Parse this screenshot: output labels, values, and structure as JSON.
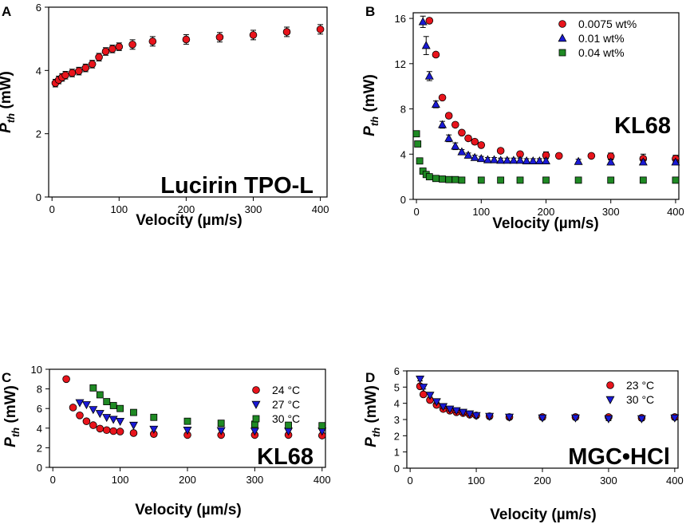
{
  "chart_data": [
    {
      "panel": "A",
      "type": "scatter",
      "annotation": "Lucirin TPO-L",
      "xlabel": "Velocity (µm/s)",
      "ylabel": "Pth (mW)",
      "ylabel_main": "P",
      "ylabel_sub": "th",
      "ylabel_unit": " (mW)",
      "xlim": [
        -5,
        410
      ],
      "ylim": [
        0,
        6
      ],
      "xticks": [
        0,
        100,
        200,
        300,
        400
      ],
      "yticks": [
        0,
        2,
        4,
        6
      ],
      "legend": "none",
      "series": [
        {
          "name": "Lucirin TPO-L",
          "color": "#e8141c",
          "marker": "circle",
          "x": [
            5,
            10,
            15,
            20,
            30,
            40,
            50,
            60,
            70,
            80,
            90,
            100,
            120,
            150,
            200,
            250,
            300,
            350,
            400
          ],
          "y": [
            3.6,
            3.7,
            3.78,
            3.85,
            3.92,
            3.98,
            4.08,
            4.2,
            4.42,
            4.6,
            4.68,
            4.75,
            4.82,
            4.92,
            4.98,
            5.05,
            5.12,
            5.22,
            5.3
          ],
          "err": [
            0.12,
            0.12,
            0.12,
            0.12,
            0.12,
            0.12,
            0.12,
            0.12,
            0.12,
            0.12,
            0.12,
            0.12,
            0.15,
            0.15,
            0.15,
            0.15,
            0.15,
            0.15,
            0.15
          ]
        }
      ]
    },
    {
      "panel": "B",
      "type": "scatter",
      "annotation": "KL68",
      "xlabel": "Velocity (µm/s)",
      "ylabel": "Pth (mW)",
      "ylabel_main": "P",
      "ylabel_sub": "th",
      "ylabel_unit": " (mW)",
      "xlim": [
        -5,
        405
      ],
      "ylim": [
        0,
        16.5
      ],
      "xticks": [
        0,
        100,
        200,
        300,
        400
      ],
      "yticks": [
        0,
        4,
        8,
        12,
        16
      ],
      "legend": "top-right",
      "series": [
        {
          "name": "0.0075 wt%",
          "color": "#e8141c",
          "marker": "circle",
          "x": [
            20,
            30,
            40,
            50,
            60,
            70,
            80,
            90,
            100,
            130,
            160,
            200,
            220,
            270,
            300,
            350,
            400
          ],
          "y": [
            15.8,
            12.8,
            9.0,
            7.4,
            6.6,
            5.9,
            5.4,
            5.1,
            4.8,
            4.3,
            4.0,
            3.9,
            3.85,
            3.85,
            3.8,
            3.6,
            3.6
          ],
          "err": [
            0.2,
            0.2,
            0.2,
            0.2,
            0.2,
            0.2,
            0.2,
            0.2,
            0.2,
            0.2,
            0.2,
            0.3,
            0.2,
            0.2,
            0.3,
            0.4,
            0.3
          ]
        },
        {
          "name": "0.01 wt%",
          "color": "#1a1ad6",
          "marker": "triangle-up",
          "x": [
            10,
            15,
            20,
            30,
            40,
            50,
            60,
            70,
            80,
            90,
            100,
            110,
            120,
            130,
            140,
            150,
            160,
            170,
            180,
            190,
            200,
            250,
            300,
            350,
            400
          ],
          "y": [
            15.7,
            13.6,
            10.9,
            8.4,
            6.6,
            5.4,
            4.7,
            4.2,
            3.9,
            3.7,
            3.6,
            3.5,
            3.5,
            3.45,
            3.45,
            3.45,
            3.45,
            3.4,
            3.4,
            3.4,
            3.4,
            3.35,
            3.3,
            3.3,
            3.3
          ],
          "err": [
            0.5,
            0.8,
            0.4,
            0.3,
            0.3,
            0.3,
            0.3,
            0.2,
            0.2,
            0.2,
            0.2,
            0.2,
            0.2,
            0.2,
            0.2,
            0.2,
            0.2,
            0.2,
            0.2,
            0.2,
            0.2,
            0.2,
            0.25,
            0.2,
            0.2
          ]
        },
        {
          "name": "0.04 wt%",
          "color": "#1f8a24",
          "marker": "square",
          "x": [
            0,
            2,
            5,
            10,
            15,
            20,
            30,
            40,
            50,
            60,
            70,
            100,
            130,
            160,
            200,
            250,
            300,
            350,
            400
          ],
          "y": [
            5.8,
            4.9,
            3.4,
            2.5,
            2.2,
            2.0,
            1.85,
            1.8,
            1.75,
            1.75,
            1.7,
            1.7,
            1.7,
            1.7,
            1.7,
            1.7,
            1.7,
            1.7,
            1.7
          ],
          "err": [
            0,
            0,
            0,
            0,
            0,
            0,
            0,
            0,
            0,
            0,
            0,
            0,
            0,
            0,
            0,
            0,
            0,
            0,
            0
          ]
        }
      ]
    },
    {
      "panel": "C",
      "type": "scatter",
      "annotation": "KL68",
      "xlabel": "Velocity (µm/s)",
      "ylabel": "Pth (mW)",
      "ylabel_main": "P",
      "ylabel_sub": "th",
      "ylabel_unit": " (mW)",
      "xlim": [
        -5,
        405
      ],
      "ylim": [
        0,
        10
      ],
      "xticks": [
        0,
        100,
        200,
        300,
        400
      ],
      "yticks": [
        0,
        2,
        4,
        6,
        8,
        10
      ],
      "legend": "top-right",
      "series": [
        {
          "name": "24 °C",
          "color": "#e8141c",
          "marker": "circle",
          "x": [
            20,
            30,
            40,
            50,
            60,
            70,
            80,
            90,
            100,
            120,
            150,
            200,
            250,
            300,
            350,
            400
          ],
          "y": [
            9.0,
            6.1,
            5.3,
            4.7,
            4.3,
            3.95,
            3.8,
            3.7,
            3.65,
            3.5,
            3.4,
            3.3,
            3.3,
            3.3,
            3.3,
            3.25
          ],
          "err": [
            0,
            0,
            0,
            0,
            0,
            0,
            0,
            0,
            0,
            0,
            0,
            0,
            0,
            0,
            0,
            0
          ]
        },
        {
          "name": "27 °C",
          "color": "#1a1ad6",
          "marker": "triangle-down",
          "x": [
            40,
            50,
            60,
            70,
            80,
            90,
            100,
            120,
            150,
            200,
            250,
            300,
            350,
            400
          ],
          "y": [
            6.6,
            6.4,
            5.9,
            5.5,
            5.1,
            4.9,
            4.7,
            4.3,
            3.9,
            3.8,
            3.75,
            3.7,
            3.7,
            3.7
          ],
          "err": [
            0,
            0,
            0,
            0,
            0,
            0,
            0,
            0,
            0,
            0,
            0,
            0,
            0,
            0
          ]
        },
        {
          "name": "30 °C",
          "color": "#1f8a24",
          "marker": "square",
          "x": [
            60,
            70,
            80,
            90,
            100,
            120,
            150,
            200,
            250,
            300,
            350,
            400
          ],
          "y": [
            8.1,
            7.4,
            6.7,
            6.3,
            6.0,
            5.6,
            5.1,
            4.7,
            4.5,
            4.4,
            4.3,
            4.25
          ],
          "err": [
            0,
            0,
            0,
            0,
            0,
            0,
            0,
            0,
            0,
            0,
            0,
            0
          ]
        }
      ]
    },
    {
      "panel": "D",
      "type": "scatter",
      "annotation": "MGC•HCl",
      "xlabel": "Velocity (µm/s)",
      "ylabel": "Pth (mW)",
      "ylabel_main": "P",
      "ylabel_sub": "th",
      "ylabel_unit": " (mW)",
      "xlim": [
        -5,
        405
      ],
      "ylim": [
        0,
        6
      ],
      "xticks": [
        0,
        100,
        200,
        300,
        400
      ],
      "yticks": [
        0,
        1,
        2,
        3,
        4,
        5,
        6
      ],
      "legend": "top-right",
      "series": [
        {
          "name": "23 °C",
          "color": "#e8141c",
          "marker": "circle",
          "x": [
            15,
            20,
            30,
            40,
            50,
            60,
            70,
            80,
            90,
            100,
            120,
            150,
            200,
            250,
            300,
            350,
            400
          ],
          "y": [
            5.05,
            4.55,
            4.2,
            3.9,
            3.65,
            3.55,
            3.45,
            3.4,
            3.3,
            3.25,
            3.2,
            3.15,
            3.15,
            3.15,
            3.15,
            3.1,
            3.15
          ],
          "err": [
            0.12,
            0.12,
            0.12,
            0.12,
            0.12,
            0.12,
            0.12,
            0.12,
            0.12,
            0.12,
            0.12,
            0.12,
            0.12,
            0.12,
            0.12,
            0.12,
            0.12
          ]
        },
        {
          "name": "30 °C",
          "color": "#1a1ad6",
          "marker": "triangle-down",
          "x": [
            15,
            20,
            30,
            40,
            50,
            60,
            70,
            80,
            90,
            100,
            120,
            150,
            200,
            250,
            300,
            350,
            400
          ],
          "y": [
            5.5,
            5.0,
            4.5,
            4.1,
            3.8,
            3.65,
            3.55,
            3.45,
            3.35,
            3.25,
            3.2,
            3.15,
            3.1,
            3.1,
            3.05,
            3.05,
            3.1
          ],
          "err": [
            0.12,
            0.12,
            0.12,
            0.12,
            0.12,
            0.12,
            0.12,
            0.12,
            0.12,
            0.12,
            0.12,
            0.12,
            0.12,
            0.12,
            0.12,
            0.12,
            0.12
          ]
        }
      ]
    }
  ]
}
